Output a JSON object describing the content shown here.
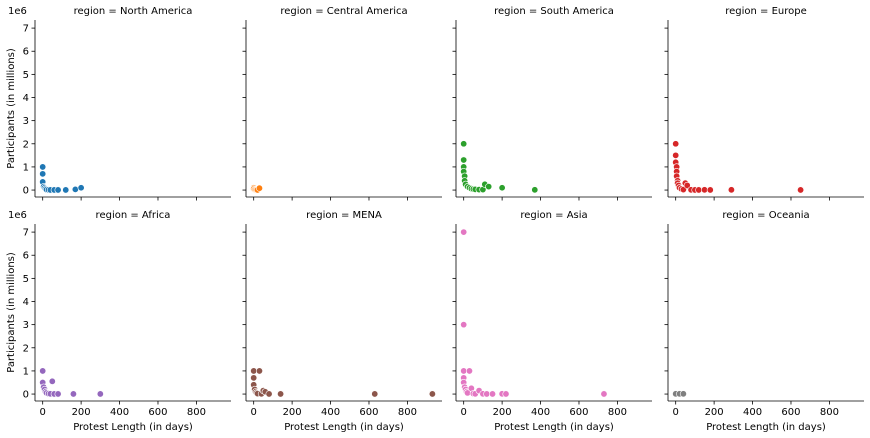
{
  "chart_data": {
    "type": "scatter",
    "layout": "facet-grid",
    "facet_variable": "region",
    "xlabel": "Protest Length (in days)",
    "ylabel": "Participants (in millions)",
    "y_offset_text": "1e6",
    "xlim": [
      -40,
      980
    ],
    "ylim": [
      -300000,
      7350000
    ],
    "xticks": [
      0,
      200,
      400,
      600,
      800
    ],
    "yticks": [
      0,
      1,
      2,
      3,
      4,
      5,
      6,
      7
    ],
    "facets": [
      {
        "title": "region = North America",
        "color": "#1f77b4",
        "points": [
          [
            0,
            1000000
          ],
          [
            0,
            700000
          ],
          [
            0,
            350000
          ],
          [
            5,
            150000
          ],
          [
            10,
            100000
          ],
          [
            15,
            50000
          ],
          [
            20,
            20000
          ],
          [
            30,
            10000
          ],
          [
            40,
            5000
          ],
          [
            60,
            5000
          ],
          [
            80,
            5000
          ],
          [
            120,
            5000
          ],
          [
            170,
            30000
          ],
          [
            200,
            100000
          ]
        ]
      },
      {
        "title": "region = Central America",
        "color": "#ff7f0e",
        "points": [
          [
            0,
            100000
          ],
          [
            0,
            50000
          ],
          [
            5,
            20000
          ],
          [
            10,
            10000
          ],
          [
            15,
            5000
          ],
          [
            20,
            5000
          ],
          [
            30,
            80000
          ]
        ]
      },
      {
        "title": "region = South America",
        "color": "#2ca02c",
        "points": [
          [
            0,
            2000000
          ],
          [
            0,
            1300000
          ],
          [
            0,
            1000000
          ],
          [
            0,
            800000
          ],
          [
            5,
            600000
          ],
          [
            5,
            400000
          ],
          [
            10,
            250000
          ],
          [
            20,
            150000
          ],
          [
            30,
            100000
          ],
          [
            40,
            60000
          ],
          [
            50,
            40000
          ],
          [
            60,
            30000
          ],
          [
            80,
            20000
          ],
          [
            100,
            20000
          ],
          [
            110,
            250000
          ],
          [
            130,
            150000
          ],
          [
            200,
            100000
          ],
          [
            370,
            10000
          ]
        ]
      },
      {
        "title": "region = Europe",
        "color": "#d62728",
        "points": [
          [
            0,
            2000000
          ],
          [
            0,
            1500000
          ],
          [
            0,
            1200000
          ],
          [
            5,
            1000000
          ],
          [
            5,
            800000
          ],
          [
            5,
            600000
          ],
          [
            10,
            400000
          ],
          [
            10,
            300000
          ],
          [
            15,
            200000
          ],
          [
            20,
            100000
          ],
          [
            30,
            50000
          ],
          [
            40,
            20000
          ],
          [
            50,
            300000
          ],
          [
            60,
            200000
          ],
          [
            80,
            10000
          ],
          [
            100,
            5000
          ],
          [
            120,
            5000
          ],
          [
            150,
            10000
          ],
          [
            180,
            5000
          ],
          [
            290,
            10000
          ],
          [
            650,
            5000
          ]
        ]
      },
      {
        "title": "region = Africa",
        "color": "#9467bd",
        "points": [
          [
            0,
            1000000
          ],
          [
            0,
            500000
          ],
          [
            5,
            300000
          ],
          [
            10,
            200000
          ],
          [
            15,
            100000
          ],
          [
            20,
            50000
          ],
          [
            30,
            20000
          ],
          [
            40,
            10000
          ],
          [
            50,
            550000
          ],
          [
            60,
            5000
          ],
          [
            80,
            5000
          ],
          [
            160,
            5000
          ],
          [
            300,
            5000
          ]
        ]
      },
      {
        "title": "region = MENA",
        "color": "#8c564b",
        "points": [
          [
            0,
            1000000
          ],
          [
            0,
            700000
          ],
          [
            0,
            400000
          ],
          [
            5,
            200000
          ],
          [
            10,
            100000
          ],
          [
            15,
            50000
          ],
          [
            20,
            20000
          ],
          [
            30,
            1000000
          ],
          [
            40,
            10000
          ],
          [
            50,
            150000
          ],
          [
            60,
            100000
          ],
          [
            80,
            5000
          ],
          [
            140,
            5000
          ],
          [
            630,
            5000
          ],
          [
            930,
            5000
          ]
        ]
      },
      {
        "title": "region = Asia",
        "color": "#e377c2",
        "points": [
          [
            0,
            7000000
          ],
          [
            0,
            3000000
          ],
          [
            0,
            1000000
          ],
          [
            0,
            700000
          ],
          [
            0,
            500000
          ],
          [
            5,
            300000
          ],
          [
            10,
            200000
          ],
          [
            15,
            100000
          ],
          [
            20,
            50000
          ],
          [
            30,
            1000000
          ],
          [
            40,
            250000
          ],
          [
            50,
            20000
          ],
          [
            60,
            10000
          ],
          [
            80,
            150000
          ],
          [
            100,
            10000
          ],
          [
            120,
            5000
          ],
          [
            150,
            5000
          ],
          [
            200,
            10000
          ],
          [
            220,
            5000
          ],
          [
            730,
            5000
          ]
        ]
      },
      {
        "title": "region = Oceania",
        "color": "#7f7f7f",
        "points": [
          [
            0,
            10000
          ],
          [
            20,
            10000
          ],
          [
            40,
            10000
          ]
        ]
      }
    ]
  }
}
